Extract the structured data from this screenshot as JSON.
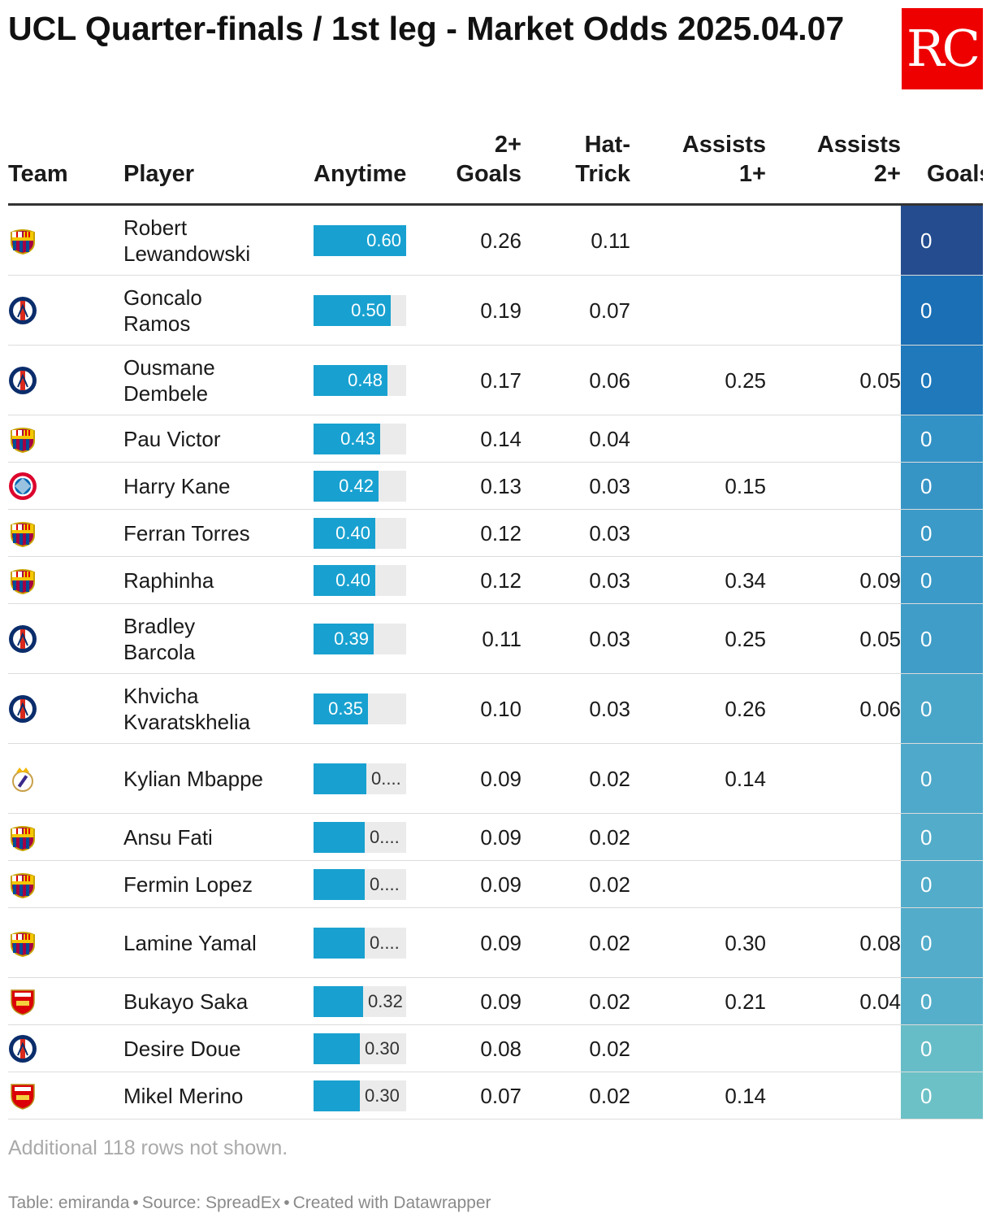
{
  "title": "UCL Quarter-finals / 1st leg - Market Odds 2025.04.07",
  "logo_text": "RC",
  "columns": {
    "team": "Team",
    "player": "Player",
    "anytime": "Anytime",
    "two_goals": "2+ Goals",
    "hat_trick": "Hat-Trick",
    "assists1": "Assists 1+",
    "assists2": "Assists 2+",
    "goals": "Goals"
  },
  "anytime_max": 0.6,
  "rows": [
    {
      "team": "barcelona-crest",
      "player": "Robert Lewandowski",
      "anytime": 0.6,
      "anytime_label": "0.60",
      "two_goals": "0.26",
      "hat_trick": "0.11",
      "assists1": "",
      "assists2": "",
      "goals": "0",
      "goals_color": "#244c8f"
    },
    {
      "team": "psg-crest",
      "player": "Goncalo Ramos",
      "anytime": 0.5,
      "anytime_label": "0.50",
      "two_goals": "0.19",
      "hat_trick": "0.07",
      "assists1": "",
      "assists2": "",
      "goals": "0",
      "goals_color": "#1b6fb4"
    },
    {
      "team": "psg-crest",
      "player": "Ousmane Dembele",
      "anytime": 0.48,
      "anytime_label": "0.48",
      "two_goals": "0.17",
      "hat_trick": "0.06",
      "assists1": "0.25",
      "assists2": "0.05",
      "goals": "0",
      "goals_color": "#1f79bb"
    },
    {
      "team": "barcelona-crest",
      "player": "Pau Victor",
      "anytime": 0.43,
      "anytime_label": "0.43",
      "two_goals": "0.14",
      "hat_trick": "0.04",
      "assists1": "",
      "assists2": "",
      "goals": "0",
      "goals_color": "#3392c5"
    },
    {
      "team": "bayern-crest",
      "player": "Harry Kane",
      "anytime": 0.42,
      "anytime_label": "0.42",
      "two_goals": "0.13",
      "hat_trick": "0.03",
      "assists1": "0.15",
      "assists2": "",
      "goals": "0",
      "goals_color": "#3795c6"
    },
    {
      "team": "barcelona-crest",
      "player": "Ferran Torres",
      "anytime": 0.4,
      "anytime_label": "0.40",
      "two_goals": "0.12",
      "hat_trick": "0.03",
      "assists1": "",
      "assists2": "",
      "goals": "0",
      "goals_color": "#3b9ac7"
    },
    {
      "team": "barcelona-crest",
      "player": "Raphinha",
      "anytime": 0.4,
      "anytime_label": "0.40",
      "two_goals": "0.12",
      "hat_trick": "0.03",
      "assists1": "0.34",
      "assists2": "0.09",
      "goals": "0",
      "goals_color": "#3b9ac7"
    },
    {
      "team": "psg-crest",
      "player": "Bradley Barcola",
      "anytime": 0.39,
      "anytime_label": "0.39",
      "two_goals": "0.11",
      "hat_trick": "0.03",
      "assists1": "0.25",
      "assists2": "0.05",
      "goals": "0",
      "goals_color": "#3f9dc8"
    },
    {
      "team": "psg-crest",
      "player": "Khvicha Kvaratskhelia",
      "anytime": 0.35,
      "anytime_label": "0.35",
      "two_goals": "0.10",
      "hat_trick": "0.03",
      "assists1": "0.26",
      "assists2": "0.06",
      "goals": "0",
      "goals_color": "#4aa6c9"
    },
    {
      "team": "real-madrid-crest",
      "player": "Kylian Mbappe",
      "anytime": 0.34,
      "anytime_label": "0....",
      "two_goals": "0.09",
      "hat_trick": "0.02",
      "assists1": "0.14",
      "assists2": "",
      "goals": "0",
      "goals_color": "#4ea9ca"
    },
    {
      "team": "barcelona-crest",
      "player": "Ansu Fati",
      "anytime": 0.33,
      "anytime_label": "0....",
      "two_goals": "0.09",
      "hat_trick": "0.02",
      "assists1": "",
      "assists2": "",
      "goals": "0",
      "goals_color": "#52acca"
    },
    {
      "team": "barcelona-crest",
      "player": "Fermin Lopez",
      "anytime": 0.33,
      "anytime_label": "0....",
      "two_goals": "0.09",
      "hat_trick": "0.02",
      "assists1": "",
      "assists2": "",
      "goals": "0",
      "goals_color": "#52acca"
    },
    {
      "team": "barcelona-crest",
      "player": "Lamine Yamal",
      "anytime": 0.33,
      "anytime_label": "0....",
      "two_goals": "0.09",
      "hat_trick": "0.02",
      "assists1": "0.30",
      "assists2": "0.08",
      "goals": "0",
      "goals_color": "#52acca"
    },
    {
      "team": "arsenal-crest",
      "player": "Bukayo Saka",
      "anytime": 0.32,
      "anytime_label": "0.32",
      "two_goals": "0.09",
      "hat_trick": "0.02",
      "assists1": "0.21",
      "assists2": "0.04",
      "goals": "0",
      "goals_color": "#56afca"
    },
    {
      "team": "psg-crest",
      "player": "Desire Doue",
      "anytime": 0.3,
      "anytime_label": "0.30",
      "two_goals": "0.08",
      "hat_trick": "0.02",
      "assists1": "",
      "assists2": "",
      "goals": "0",
      "goals_color": "#66bdc7"
    },
    {
      "team": "arsenal-crest",
      "player": "Mikel Merino",
      "anytime": 0.3,
      "anytime_label": "0.30",
      "two_goals": "0.07",
      "hat_trick": "0.02",
      "assists1": "0.14",
      "assists2": "",
      "goals": "0",
      "goals_color": "#6cc1c6"
    }
  ],
  "note": "Additional 118 rows not shown.",
  "footer": {
    "table_by": "Table: emiranda",
    "source": "Source: SpreadEx",
    "created": "Created with Datawrapper"
  }
}
